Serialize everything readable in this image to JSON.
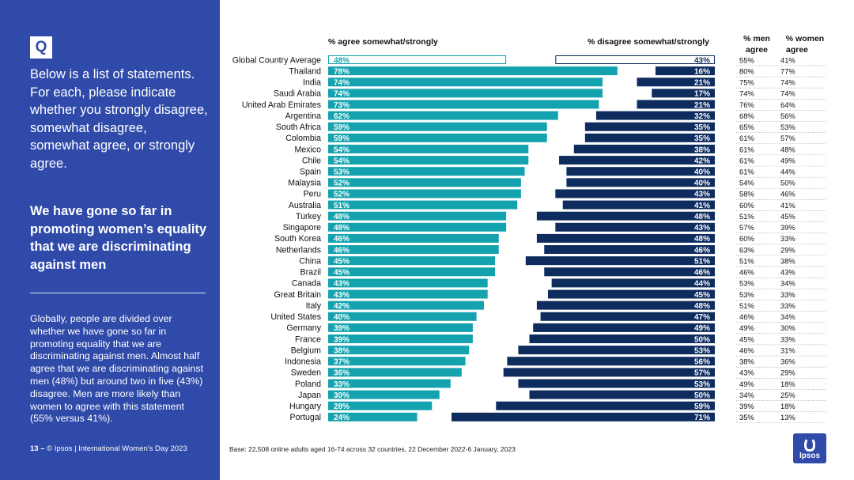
{
  "sidebar": {
    "badge": "Q",
    "question": "Below is a list of statements. For each, please indicate whether you strongly disagree, somewhat disagree, somewhat agree, or strongly agree.",
    "statement": "We have gone so far in promoting women’s equality that we are discriminating against men",
    "summary": "Globally, people are divided over whether we have gone so far in promoting equality that we are discriminating against men. Almost half agree that we are discriminating against men (48%) but around two in five (43%) disagree. Men are more likely than women to agree with this statement (55% versus 41%).",
    "page_number": "13",
    "footer_sep": "–",
    "footer_text": "© Ipsos | International Women’s Day 2023"
  },
  "base_note": "Base: 22,508 online adults aged 16-74 across 32 countries, 22 December 2022-6 January, 2023",
  "logo_text": "Ipsos",
  "colors": {
    "sidebar_bg": "#2f4aa9",
    "agree": "#14a3ae",
    "disagree": "#0e2c5e",
    "global_outline": "#14a3ae",
    "global_disagree_outline": "#0e2c5e"
  },
  "chart_data": {
    "type": "bar",
    "orientation": "horizontal-diverging",
    "agree_header": "% agree somewhat/strongly",
    "disagree_header": "% disagree somewhat/strongly",
    "men_header_1": "% men",
    "men_header_2": "agree",
    "women_header_1": "% women",
    "women_header_2": "agree",
    "xlim": [
      0,
      100
    ],
    "categories": [
      "Global Country Average",
      "Thailand",
      "India",
      "Saudi Arabia",
      "United Arab Emirates",
      "Argentina",
      "South Africa",
      "Colombia",
      "Mexico",
      "Chile",
      "Spain",
      "Malaysia",
      "Peru",
      "Australia",
      "Turkey",
      "Singapore",
      "South Korea",
      "Netherlands",
      "China",
      "Brazil",
      "Canada",
      "Great Britain",
      "Italy",
      "United States",
      "Germany",
      "France",
      "Belgium",
      "Indonesia",
      "Sweden",
      "Poland",
      "Japan",
      "Hungary",
      "Portugal"
    ],
    "series": [
      {
        "name": "% agree somewhat/strongly",
        "values": [
          48,
          78,
          74,
          74,
          73,
          62,
          59,
          59,
          54,
          54,
          53,
          52,
          52,
          51,
          48,
          48,
          46,
          46,
          45,
          45,
          43,
          43,
          42,
          40,
          39,
          39,
          38,
          37,
          36,
          33,
          30,
          28,
          24
        ]
      },
      {
        "name": "% disagree somewhat/strongly",
        "values": [
          43,
          16,
          21,
          17,
          21,
          32,
          35,
          35,
          38,
          42,
          40,
          40,
          43,
          41,
          48,
          43,
          48,
          46,
          51,
          46,
          44,
          45,
          48,
          47,
          49,
          50,
          53,
          56,
          57,
          53,
          50,
          59,
          71
        ]
      },
      {
        "name": "% men agree",
        "values": [
          55,
          80,
          75,
          74,
          76,
          68,
          65,
          61,
          61,
          61,
          61,
          54,
          58,
          60,
          51,
          57,
          60,
          63,
          51,
          46,
          53,
          53,
          51,
          46,
          49,
          45,
          46,
          38,
          43,
          49,
          34,
          39,
          35
        ]
      },
      {
        "name": "% women agree",
        "values": [
          41,
          77,
          74,
          74,
          64,
          56,
          53,
          57,
          48,
          49,
          44,
          50,
          46,
          41,
          45,
          39,
          33,
          29,
          38,
          43,
          34,
          33,
          33,
          34,
          30,
          33,
          31,
          36,
          29,
          18,
          25,
          18,
          13
        ]
      }
    ]
  }
}
